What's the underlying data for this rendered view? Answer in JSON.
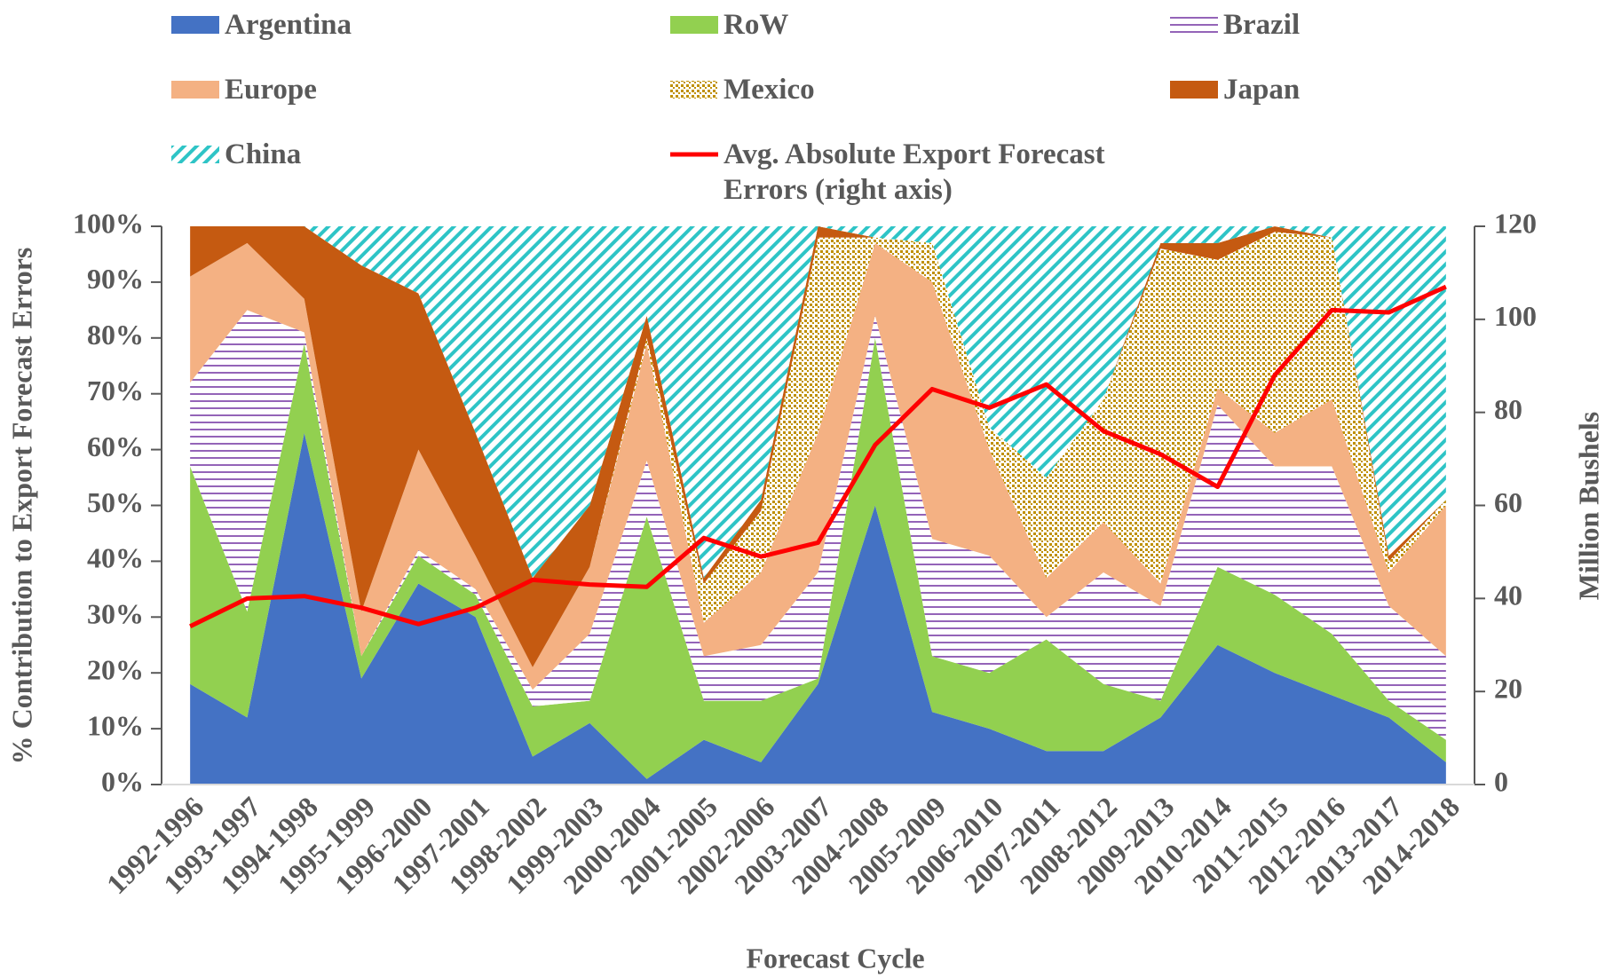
{
  "chart_data": {
    "type": "stacked-area",
    "x_label": "Forecast Cycle",
    "y_label": "% Contribution to Export Forecast Errors",
    "y2_label": "Million Bushels",
    "categories": [
      "1992-1996",
      "1993-1997",
      "1994-1998",
      "1995-1999",
      "1996-2000",
      "1997-2001",
      "1998-2002",
      "1999-2003",
      "2000-2004",
      "2001-2005",
      "2002-2006",
      "2003-2007",
      "2004-2008",
      "2005-2009",
      "2006-2010",
      "2007-2011",
      "2008-2012",
      "2009-2013",
      "2010-2014",
      "2011-2015",
      "2012-2016",
      "2013-2017",
      "2014-2018"
    ],
    "ylim": [
      0,
      100
    ],
    "yticks": [
      {
        "value": 0,
        "label": "0%"
      },
      {
        "value": 10,
        "label": "10%"
      },
      {
        "value": 20,
        "label": "20%"
      },
      {
        "value": 30,
        "label": "30%"
      },
      {
        "value": 40,
        "label": "40%"
      },
      {
        "value": 50,
        "label": "50%"
      },
      {
        "value": 60,
        "label": "60%"
      },
      {
        "value": 70,
        "label": "70%"
      },
      {
        "value": 80,
        "label": "80%"
      },
      {
        "value": 90,
        "label": "90%"
      },
      {
        "value": 100,
        "label": "100%"
      }
    ],
    "y2lim": [
      0,
      120
    ],
    "y2ticks": [
      0,
      20,
      40,
      60,
      80,
      100,
      120
    ],
    "series": [
      {
        "name": "Argentina",
        "color": "#4472c4",
        "pattern": "solid",
        "values": [
          18,
          12,
          63,
          19,
          36,
          30,
          5,
          11,
          1,
          8,
          4,
          18,
          50,
          13,
          10,
          6,
          6,
          12,
          25,
          20,
          16,
          12,
          4
        ]
      },
      {
        "name": "RoW",
        "color": "#92d050",
        "pattern": "solid",
        "values": [
          39,
          19,
          16,
          4,
          5,
          4,
          9,
          4,
          47,
          7,
          11,
          1,
          30,
          10,
          10,
          20,
          12,
          3,
          14,
          14,
          11,
          3,
          4
        ]
      },
      {
        "name": "Brazil",
        "color": "#7030a0",
        "pattern": "hlines",
        "values": [
          15,
          54,
          2,
          0,
          1,
          1,
          3,
          12,
          10,
          8,
          10,
          19,
          4,
          21,
          21,
          4,
          20,
          17,
          29,
          23,
          30,
          17,
          15
        ]
      },
      {
        "name": "Europe",
        "color": "#f4b183",
        "pattern": "solid",
        "values": [
          19,
          12,
          6,
          8,
          18,
          6,
          4,
          12,
          21,
          6,
          13,
          25,
          13,
          46,
          19,
          7,
          9,
          4,
          3,
          6,
          12,
          6,
          27
        ]
      },
      {
        "name": "Mexico",
        "color": "#bf9000",
        "pattern": "dots",
        "values": [
          0,
          0,
          0,
          0,
          0,
          0,
          0,
          0,
          1,
          7,
          11,
          35,
          1,
          7,
          4,
          18,
          22,
          60,
          23,
          36,
          29,
          2,
          1
        ]
      },
      {
        "name": "Japan",
        "color": "#c55a11",
        "pattern": "solid",
        "values": [
          9,
          3,
          13,
          62,
          28,
          22,
          16,
          11,
          4,
          1,
          2,
          2,
          0,
          0,
          0,
          0,
          0,
          1,
          3,
          1,
          0,
          1,
          0
        ]
      },
      {
        "name": "China",
        "color": "#2ec4c6",
        "pattern": "diagonal",
        "values": [
          0,
          0,
          0,
          7,
          12,
          37,
          63,
          50,
          16,
          63,
          49,
          0,
          2,
          3,
          36,
          45,
          31,
          3,
          3,
          0,
          2,
          59,
          49
        ]
      },
      {
        "name": "Avg. Absolute Export Forecast Errors (right axis)",
        "color": "#ff0000",
        "type": "line",
        "axis": "y2",
        "values": [
          34,
          40,
          40.5,
          38,
          34.5,
          38,
          44,
          43,
          42.5,
          53,
          49,
          52,
          73,
          85,
          81,
          86,
          76,
          71,
          64,
          88,
          102,
          101.5,
          107
        ]
      }
    ]
  }
}
